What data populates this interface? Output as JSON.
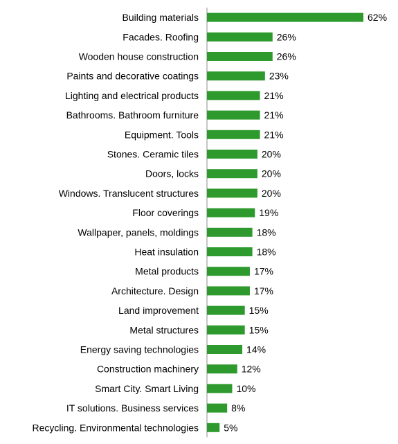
{
  "chart_data": {
    "type": "bar",
    "orientation": "horizontal",
    "title": "",
    "xlabel": "",
    "ylabel": "",
    "grid": false,
    "legend": "none",
    "bar_color": "#2e9a2e",
    "value_suffix": "%",
    "xlim": [
      0,
      62
    ],
    "categories": [
      "Building materials",
      "Facades. Roofing",
      "Wooden house construction",
      "Paints and decorative coatings",
      "Lighting and electrical products",
      "Bathrooms. Bathroom furniture",
      "Equipment. Tools",
      "Stones. Ceramic tiles",
      "Doors, locks",
      "Windows. Translucent structures",
      "Floor coverings",
      "Wallpaper, panels, moldings",
      "Heat insulation",
      "Metal products",
      "Architecture. Design",
      "Land improvement",
      "Metal structures",
      "Energy saving technologies",
      "Construction machinery",
      "Smart City. Smart Living",
      "IT solutions. Business services",
      "Recycling. Environmental technologies"
    ],
    "values": [
      62,
      26,
      26,
      23,
      21,
      21,
      21,
      20,
      20,
      20,
      19,
      18,
      18,
      17,
      17,
      15,
      15,
      14,
      12,
      10,
      8,
      5
    ],
    "value_labels": [
      "62%",
      "26%",
      "26%",
      "23%",
      "21%",
      "21%",
      "21%",
      "20%",
      "20%",
      "20%",
      "19%",
      "18%",
      "18%",
      "17%",
      "17%",
      "15%",
      "15%",
      "14%",
      "12%",
      "10%",
      "8%",
      "5%"
    ]
  }
}
